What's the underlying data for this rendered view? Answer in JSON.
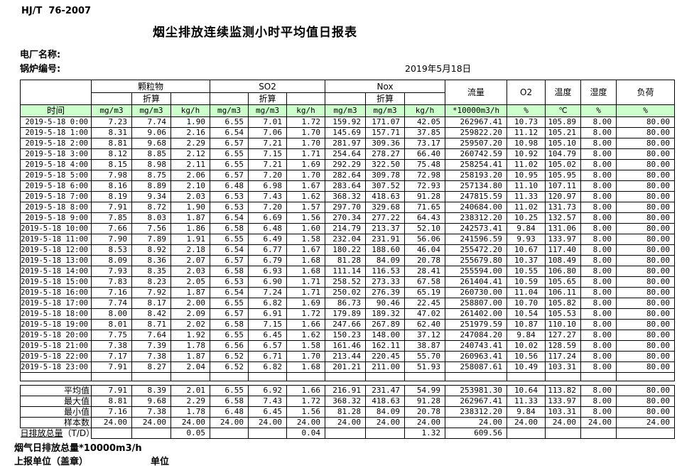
{
  "doc": {
    "standard": "HJ/T  76-2007",
    "title": "烟尘排放连续监测小时平均值日报表",
    "plant_label": "电厂名称:",
    "boiler_label": "锅炉编号:",
    "date": "2019年5月18日"
  },
  "colors": {
    "header_green": "#ccffcc"
  },
  "table": {
    "time_label": "时间",
    "converted_label": "折算",
    "col_groups": {
      "pm": "颗粒物",
      "so2": "SO2",
      "nox": "Nox",
      "flow": "流量",
      "o2": "O2",
      "temp": "温度",
      "humidity": "湿度",
      "load": "负荷"
    },
    "units": [
      "mg/m3",
      "mg/m3",
      "kg/h",
      "mg/m3",
      "mg/m3",
      "kg/h",
      "mg/m3",
      "mg/m3",
      "kg/h",
      "*10000m3/h",
      "%",
      "℃",
      "%",
      "%"
    ],
    "rows": [
      {
        "time": "2019-5-18 0:00",
        "values": [
          "7.23",
          "7.74",
          "1.90",
          "6.55",
          "7.01",
          "1.72",
          "159.92",
          "171.07",
          "42.05",
          "262967.41",
          "10.73",
          "105.89",
          "8.00",
          "80.00"
        ]
      },
      {
        "time": "2019-5-18 1:00",
        "values": [
          "8.31",
          "9.06",
          "2.16",
          "6.54",
          "7.06",
          "1.70",
          "145.69",
          "157.71",
          "37.85",
          "259822.20",
          "11.12",
          "105.21",
          "8.00",
          "80.00"
        ]
      },
      {
        "time": "2019-5-18 2:00",
        "values": [
          "8.81",
          "9.68",
          "2.29",
          "6.57",
          "7.21",
          "1.70",
          "281.97",
          "309.36",
          "73.17",
          "259507.20",
          "10.98",
          "105.10",
          "8.00",
          "80.00"
        ]
      },
      {
        "time": "2019-5-18 3:00",
        "values": [
          "8.12",
          "8.85",
          "2.12",
          "6.55",
          "7.15",
          "1.71",
          "254.64",
          "278.27",
          "66.40",
          "260742.59",
          "10.92",
          "104.79",
          "8.00",
          "80.00"
        ]
      },
      {
        "time": "2019-5-18 4:00",
        "values": [
          "8.15",
          "8.98",
          "2.11",
          "6.55",
          "7.21",
          "1.69",
          "292.29",
          "322.50",
          "75.48",
          "258254.41",
          "11.02",
          "105.02",
          "8.00",
          "80.00"
        ]
      },
      {
        "time": "2019-5-18 5:00",
        "values": [
          "7.98",
          "8.75",
          "2.06",
          "6.57",
          "7.20",
          "1.70",
          "282.64",
          "309.78",
          "72.98",
          "258193.20",
          "10.95",
          "105.95",
          "8.00",
          "80.00"
        ]
      },
      {
        "time": "2019-5-18 6:00",
        "values": [
          "8.16",
          "8.89",
          "2.10",
          "6.48",
          "6.98",
          "1.67",
          "283.64",
          "307.52",
          "72.93",
          "257134.80",
          "11.10",
          "107.11",
          "8.00",
          "80.00"
        ]
      },
      {
        "time": "2019-5-18 7:00",
        "values": [
          "8.19",
          "9.34",
          "2.03",
          "6.53",
          "7.43",
          "1.62",
          "368.32",
          "418.63",
          "91.28",
          "247815.59",
          "11.33",
          "120.97",
          "8.00",
          "80.00"
        ]
      },
      {
        "time": "2019-5-18 8:00",
        "values": [
          "7.91",
          "8.72",
          "1.90",
          "6.53",
          "7.20",
          "1.57",
          "297.70",
          "329.68",
          "71.65",
          "240684.00",
          "11.02",
          "131.73",
          "8.00",
          "80.00"
        ]
      },
      {
        "time": "2019-5-18 9:00",
        "values": [
          "7.85",
          "8.03",
          "1.87",
          "6.54",
          "6.69",
          "1.56",
          "270.34",
          "277.22",
          "64.43",
          "238312.20",
          "10.25",
          "132.57",
          "8.00",
          "80.00"
        ]
      },
      {
        "time": "2019-5-18 10:00",
        "values": [
          "7.66",
          "7.56",
          "1.86",
          "6.58",
          "6.48",
          "1.60",
          "214.79",
          "213.37",
          "52.10",
          "242573.41",
          "9.84",
          "131.06",
          "8.00",
          "80.00"
        ]
      },
      {
        "time": "2019-5-18 11:00",
        "values": [
          "7.90",
          "7.89",
          "1.91",
          "6.55",
          "6.49",
          "1.58",
          "232.04",
          "231.91",
          "56.06",
          "241596.59",
          "9.93",
          "133.97",
          "8.00",
          "80.00"
        ]
      },
      {
        "time": "2019-5-18 12:00",
        "values": [
          "8.53",
          "8.92",
          "2.18",
          "6.54",
          "6.77",
          "1.67",
          "180.22",
          "188.60",
          "46.04",
          "255472.20",
          "10.67",
          "117.40",
          "8.00",
          "80.00"
        ]
      },
      {
        "time": "2019-5-18 13:00",
        "values": [
          "8.09",
          "8.36",
          "2.07",
          "6.57",
          "6.79",
          "1.68",
          "81.28",
          "84.09",
          "20.78",
          "255679.80",
          "10.37",
          "108.49",
          "8.00",
          "80.00"
        ]
      },
      {
        "time": "2019-5-18 14:00",
        "values": [
          "7.93",
          "8.35",
          "2.03",
          "6.58",
          "6.93",
          "1.68",
          "111.14",
          "116.53",
          "28.41",
          "255594.00",
          "10.55",
          "106.80",
          "8.00",
          "80.00"
        ]
      },
      {
        "time": "2019-5-18 15:00",
        "values": [
          "7.83",
          "8.23",
          "2.05",
          "6.53",
          "6.90",
          "1.71",
          "258.52",
          "273.33",
          "67.58",
          "261404.41",
          "10.59",
          "105.65",
          "8.00",
          "80.00"
        ]
      },
      {
        "time": "2019-5-18 16:00",
        "values": [
          "7.16",
          "7.92",
          "1.87",
          "6.54",
          "7.24",
          "1.71",
          "250.02",
          "276.39",
          "65.19",
          "260730.00",
          "11.04",
          "106.11",
          "8.00",
          "80.00"
        ]
      },
      {
        "time": "2019-5-18 17:00",
        "values": [
          "7.74",
          "8.17",
          "2.00",
          "6.55",
          "6.82",
          "1.69",
          "86.73",
          "90.46",
          "22.45",
          "258807.00",
          "10.70",
          "105.82",
          "8.00",
          "80.00"
        ]
      },
      {
        "time": "2019-5-18 18:00",
        "values": [
          "8.00",
          "8.42",
          "2.09",
          "6.57",
          "6.91",
          "1.72",
          "179.89",
          "189.32",
          "47.02",
          "261402.00",
          "10.54",
          "105.53",
          "8.00",
          "80.00"
        ]
      },
      {
        "time": "2019-5-18 19:00",
        "values": [
          "8.01",
          "8.71",
          "2.02",
          "6.58",
          "7.15",
          "1.66",
          "247.66",
          "267.89",
          "62.40",
          "251979.59",
          "10.87",
          "110.10",
          "8.00",
          "80.00"
        ]
      },
      {
        "time": "2019-5-18 20:00",
        "values": [
          "7.75",
          "7.64",
          "1.92",
          "6.55",
          "6.45",
          "1.62",
          "150.23",
          "148.00",
          "37.12",
          "247084.20",
          "9.84",
          "127.27",
          "8.00",
          "80.00"
        ]
      },
      {
        "time": "2019-5-18 21:00",
        "values": [
          "7.38",
          "7.39",
          "1.78",
          "6.56",
          "6.57",
          "1.58",
          "161.46",
          "162.11",
          "38.87",
          "240743.41",
          "10.02",
          "128.59",
          "8.00",
          "80.00"
        ]
      },
      {
        "time": "2019-5-18 22:00",
        "values": [
          "7.17",
          "7.38",
          "1.87",
          "6.52",
          "6.71",
          "1.70",
          "213.44",
          "220.45",
          "55.70",
          "260963.41",
          "10.56",
          "117.24",
          "8.00",
          "80.00"
        ]
      },
      {
        "time": "2019-5-18 23:00",
        "values": [
          "7.91",
          "8.27",
          "2.04",
          "6.52",
          "6.82",
          "1.68",
          "201.21",
          "211.00",
          "51.93",
          "258087.61",
          "10.49",
          "103.31",
          "8.00",
          "80.00"
        ]
      }
    ],
    "summary": [
      {
        "label": "平均值",
        "values": [
          "7.91",
          "8.39",
          "2.01",
          "6.55",
          "6.92",
          "1.66",
          "216.91",
          "231.47",
          "54.99",
          "253981.30",
          "10.64",
          "113.82",
          "8.00",
          "80.00"
        ]
      },
      {
        "label": "最大值",
        "values": [
          "8.81",
          "9.68",
          "2.29",
          "6.58",
          "7.43",
          "1.72",
          "368.32",
          "418.63",
          "91.28",
          "262967.41",
          "11.33",
          "133.97",
          "8.00",
          "80.00"
        ]
      },
      {
        "label": "最小值",
        "values": [
          "7.16",
          "7.38",
          "1.78",
          "6.48",
          "6.45",
          "1.56",
          "81.28",
          "84.09",
          "20.78",
          "238312.20",
          "9.84",
          "103.31",
          "8.00",
          "80.00"
        ]
      },
      {
        "label": "样本数",
        "values": [
          "24.00",
          "24.00",
          "24.00",
          "24.00",
          "24.00",
          "24.00",
          "24.00",
          "24.00",
          "24.00",
          "24.00",
          "24.00",
          "24.00",
          "24.00",
          "24.00"
        ]
      }
    ],
    "daily_total": {
      "label": "日排放总量",
      "suffix": "（T/D）",
      "values": [
        "",
        "",
        "0.05",
        "",
        "",
        "0.04",
        "",
        "",
        "1.32",
        "609.56",
        "",
        "",
        "",
        ""
      ]
    }
  },
  "footer": {
    "flue_gas_total": "烟气日排放总量*10000m3/h",
    "report_unit_label": "上报单位（盖章）",
    "unit_label": "单位"
  }
}
